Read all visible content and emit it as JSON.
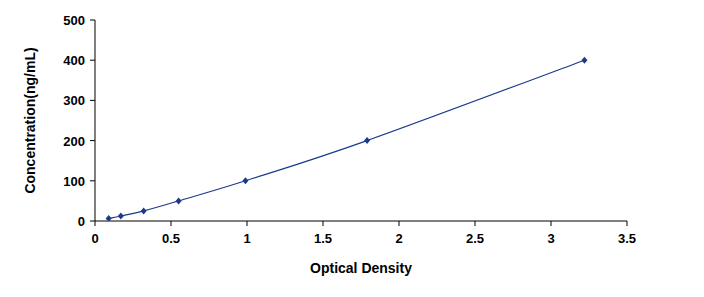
{
  "chart_data": {
    "type": "scatter",
    "x_label": "Optical Density",
    "y_label": "Concentration(ng/mL)",
    "x": [
      0.09,
      0.17,
      0.32,
      0.55,
      0.99,
      1.79,
      3.22
    ],
    "values": [
      6.25,
      12.5,
      25,
      50,
      100,
      200,
      400
    ],
    "color": "#1c3a8c",
    "marker": "diamond",
    "line_style": "solid",
    "xlim": [
      0,
      3.5
    ],
    "xticks": [
      0,
      0.5,
      1,
      1.5,
      2,
      2.5,
      3,
      3.5
    ],
    "ylim": [
      0,
      500
    ],
    "yticks": [
      0,
      100,
      200,
      300,
      400,
      500
    ],
    "grid": false
  }
}
